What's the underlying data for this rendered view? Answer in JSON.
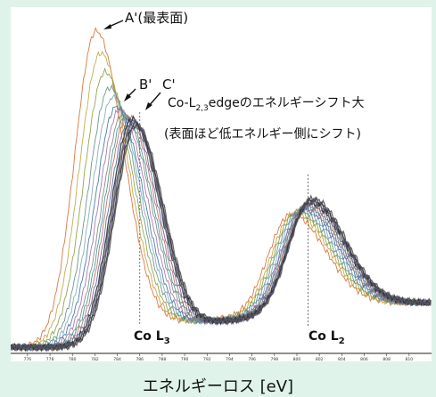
{
  "chart_data": {
    "type": "line",
    "title": "",
    "xlabel": "エネルギーロス [eV]",
    "ylabel": "",
    "xlim": [
      774.5,
      812
    ],
    "x_ticks": [
      776,
      778,
      780,
      782,
      784,
      786,
      788,
      790,
      792,
      794,
      796,
      798,
      800,
      802,
      804,
      806,
      808,
      810
    ],
    "y_ticks": [],
    "grid": false,
    "legend": "none",
    "n_spectra": 16,
    "series_colors": [
      "#d7682f",
      "#c2a13a",
      "#8a9b3b",
      "#5b8f7a",
      "#7aa4bd",
      "#3d6f9c",
      "#9a6fa8",
      "#7f7f7f",
      "#3f8f8f",
      "#b36a5e",
      "#5a5aa0",
      "#2f2f2f",
      "#6a6a6a",
      "#4a4a7a",
      "#333333",
      "#555555"
    ],
    "series": [
      {
        "name": "",
        "L3_peak_eV": 782.1,
        "L2_peak_eV": 799.4,
        "L3_intensity": 1.0
      },
      {
        "name": "",
        "L3_peak_eV": 782.5,
        "L2_peak_eV": 799.7,
        "L3_intensity": 0.93
      },
      {
        "name": "",
        "L3_peak_eV": 782.9,
        "L2_peak_eV": 799.9,
        "L3_intensity": 0.87
      },
      {
        "name": "",
        "L3_peak_eV": 783.3,
        "L2_peak_eV": 800.1,
        "L3_intensity": 0.82
      },
      {
        "name": "",
        "L3_peak_eV": 783.6,
        "L2_peak_eV": 800.3,
        "L3_intensity": 0.79
      },
      {
        "name": "",
        "L3_peak_eV": 783.9,
        "L2_peak_eV": 800.5,
        "L3_intensity": 0.76
      },
      {
        "name": "",
        "L3_peak_eV": 784.2,
        "L2_peak_eV": 800.6,
        "L3_intensity": 0.75
      },
      {
        "name": "",
        "L3_peak_eV": 784.5,
        "L2_peak_eV": 800.7,
        "L3_intensity": 0.74
      },
      {
        "name": "",
        "L3_peak_eV": 784.7,
        "L2_peak_eV": 800.8,
        "L3_intensity": 0.73
      },
      {
        "name": "",
        "L3_peak_eV": 784.9,
        "L2_peak_eV": 800.9,
        "L3_intensity": 0.73
      },
      {
        "name": "",
        "L3_peak_eV": 785.1,
        "L2_peak_eV": 801.0,
        "L3_intensity": 0.72
      },
      {
        "name": "",
        "L3_peak_eV": 785.3,
        "L2_peak_eV": 801.1,
        "L3_intensity": 0.72
      },
      {
        "name": "",
        "L3_peak_eV": 785.4,
        "L2_peak_eV": 801.1,
        "L3_intensity": 0.71
      },
      {
        "name": "",
        "L3_peak_eV": 785.5,
        "L2_peak_eV": 801.2,
        "L3_intensity": 0.71
      },
      {
        "name": "",
        "L3_peak_eV": 785.6,
        "L2_peak_eV": 801.2,
        "L3_intensity": 0.7
      },
      {
        "name": "",
        "L3_peak_eV": 785.7,
        "L2_peak_eV": 801.3,
        "L3_intensity": 0.7
      }
    ],
    "reference_lines": [
      {
        "label": "Co L",
        "sub": "3",
        "x": 786.0
      },
      {
        "label": "Co L",
        "sub": "2",
        "x": 801.0
      }
    ],
    "annotations": {
      "a_label": "A'(最表面)",
      "b_label": "B'",
      "c_label": "C'",
      "shift_line1_prefix": "Co-L",
      "shift_line1_sub": "2,3",
      "shift_line1_suffix": "edgeのエネルギーシフト大",
      "shift_line2": "(表面ほど低エネルギー側にシフト)"
    }
  }
}
